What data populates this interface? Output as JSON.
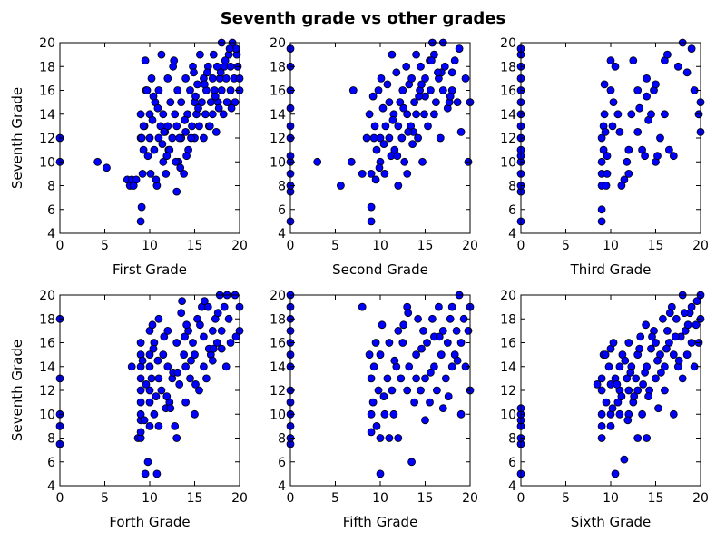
{
  "figure": {
    "title": "Seventh grade vs other grades"
  },
  "chart_data": [
    {
      "type": "scatter",
      "xlabel": "First Grade",
      "ylabel": "Seventh Grade",
      "xlim": [
        0,
        20
      ],
      "ylim": [
        4,
        20
      ],
      "xticks": [
        0,
        5,
        10,
        15,
        20
      ],
      "yticks": [
        4,
        6,
        8,
        10,
        12,
        14,
        16,
        18,
        20
      ],
      "grid": false,
      "marker_color": "#0000ff",
      "x": [
        0,
        0,
        4.2,
        5.2,
        7.5,
        7.8,
        8,
        8.2,
        8.5,
        9,
        9,
        9,
        9.1,
        9.2,
        9.3,
        9.4,
        9.5,
        9.6,
        9.8,
        10,
        10,
        10.1,
        10.2,
        10.3,
        10.5,
        10.6,
        10.8,
        11,
        11,
        11.2,
        11.3,
        11.5,
        11.5,
        11.7,
        11.8,
        12,
        12,
        12.1,
        12.3,
        12.5,
        12.6,
        12.8,
        13,
        13,
        13.1,
        13.2,
        13.5,
        13.5,
        13.8,
        14,
        14,
        14.2,
        14.3,
        14.5,
        14.7,
        14.8,
        15,
        15,
        15.2,
        15.3,
        15.5,
        15.6,
        15.8,
        16,
        16,
        16.2,
        16.3,
        16.5,
        16.6,
        16.8,
        17,
        17,
        17.1,
        17.2,
        17.4,
        17.5,
        17.6,
        17.8,
        18,
        18,
        18.2,
        18.3,
        18.5,
        18.6,
        18.8,
        19,
        19,
        19.2,
        19.4,
        19.5,
        19.7,
        19.8,
        20,
        20,
        9.3,
        9.7,
        10.4,
        10.9,
        11.6,
        12.2,
        12.9,
        13.4,
        13.9,
        14.6,
        15.4,
        16.1,
        16.7,
        17.3,
        17.9,
        18.4,
        19.1,
        19.6,
        9.1,
        10.7,
        11.4,
        12.7,
        13.3,
        14.1,
        15.1,
        16.4,
        17.7,
        18.9,
        11.9,
        14.9
      ],
      "y": [
        10,
        12,
        10,
        9.5,
        8.5,
        8,
        8.5,
        8,
        8.5,
        12,
        14,
        5,
        6.2,
        9,
        11,
        13,
        18.5,
        16,
        10.5,
        12,
        14,
        9,
        17,
        13.5,
        11,
        15,
        8,
        12,
        16,
        13,
        19,
        10,
        14,
        12.5,
        9,
        13,
        17,
        11,
        15,
        12,
        18,
        14,
        7.5,
        13,
        16,
        10,
        12,
        15,
        9,
        12.5,
        17,
        14,
        11,
        16,
        13,
        18,
        12,
        15,
        14,
        16.5,
        13,
        19,
        15,
        12,
        17,
        14,
        16,
        18,
        13,
        15,
        17,
        14,
        19,
        16,
        12.5,
        18,
        15,
        17,
        16,
        20,
        14,
        18,
        17,
        15,
        19,
        16,
        18,
        20,
        17,
        15,
        19,
        18,
        16,
        17,
        13,
        16,
        15.5,
        14.5,
        12.5,
        11,
        10,
        9.5,
        13.5,
        12,
        14.5,
        16.5,
        13,
        15.5,
        17.5,
        18.5,
        14.5,
        19.5,
        12,
        8.5,
        11.5,
        18.5,
        12,
        10.5,
        15.5,
        17.5,
        14.5,
        19.5,
        10.5,
        17.5
      ]
    },
    {
      "type": "scatter",
      "xlabel": "Second Grade",
      "ylabel": "",
      "xlim": [
        0,
        20
      ],
      "ylim": [
        4,
        20
      ],
      "xticks": [
        0,
        5,
        10,
        15,
        20
      ],
      "yticks": [
        4,
        6,
        8,
        10,
        12,
        14,
        16,
        18,
        20
      ],
      "grid": false,
      "marker_color": "#0000ff",
      "x": [
        0,
        0,
        0,
        0,
        0,
        0,
        0,
        0,
        0,
        0,
        0,
        0,
        3,
        5.6,
        6.8,
        7,
        8,
        8.5,
        8.8,
        9,
        9,
        9,
        9.2,
        9.4,
        9.5,
        9.6,
        9.8,
        10,
        10,
        10.1,
        10.3,
        10.5,
        10.6,
        10.8,
        11,
        11,
        11.2,
        11.3,
        11.5,
        11.6,
        11.8,
        12,
        12,
        12.2,
        12.4,
        12.5,
        12.7,
        12.9,
        13,
        13,
        13.2,
        13.4,
        13.5,
        13.6,
        13.8,
        14,
        14,
        14.2,
        14.4,
        14.5,
        14.7,
        14.9,
        15,
        15,
        15.3,
        15.5,
        15.6,
        15.8,
        16,
        16,
        16.2,
        16.5,
        16.7,
        17,
        17,
        17.2,
        17.5,
        17.7,
        18,
        18,
        18.3,
        18.6,
        19,
        19.5,
        19.8,
        20,
        9.3,
        10.4,
        11.4,
        12.6,
        13.7,
        14.6,
        15.7,
        16.8,
        17.8,
        18.8,
        9.9,
        11.9,
        13.1,
        14.3,
        16.4
      ],
      "y": [
        5,
        7.5,
        8,
        9,
        10,
        10.5,
        12,
        13,
        14.5,
        16,
        18,
        19.5,
        10,
        8,
        10,
        16,
        9,
        12,
        14,
        9,
        6.2,
        5,
        15.5,
        13,
        8.5,
        11,
        16,
        12,
        10,
        17,
        14.5,
        9,
        13,
        16.5,
        12,
        15,
        10.5,
        19,
        14,
        11,
        17.5,
        13,
        8,
        15,
        12,
        16,
        10,
        18,
        14,
        9,
        16.5,
        13,
        17,
        11.5,
        15,
        19,
        14,
        12,
        16,
        18,
        10,
        14,
        17,
        15.5,
        13,
        18.5,
        16,
        20,
        14,
        19,
        15,
        17,
        12,
        20,
        16,
        18,
        14.5,
        15,
        17.5,
        16,
        18.5,
        15,
        12.5,
        17,
        10,
        15,
        12,
        11.5,
        13.5,
        14.5,
        12.5,
        16.5,
        18.5,
        17.5,
        15.5,
        19.5,
        9.5,
        10.5,
        12.5,
        15.5,
        17.5
      ]
    },
    {
      "type": "scatter",
      "xlabel": "Third Grade",
      "ylabel": "",
      "xlim": [
        0,
        20
      ],
      "ylim": [
        4,
        20
      ],
      "xticks": [
        0,
        5,
        10,
        15,
        20
      ],
      "yticks": [
        4,
        6,
        8,
        10,
        12,
        14,
        16,
        18,
        20
      ],
      "grid": false,
      "marker_color": "#0000ff",
      "x": [
        0,
        0,
        0,
        0,
        0,
        0,
        0,
        0,
        0,
        0,
        0,
        0,
        0,
        0,
        0,
        0,
        9,
        9,
        9,
        9,
        9,
        9,
        9.2,
        9.2,
        9.3,
        9.3,
        9.4,
        9.5,
        9.6,
        9.6,
        10,
        10,
        10.2,
        10.3,
        10.5,
        10.8,
        11,
        11.2,
        11.5,
        11.8,
        12,
        12,
        12.3,
        12.5,
        13,
        13,
        13.2,
        13.5,
        13.8,
        14,
        14,
        14.2,
        14.5,
        14.8,
        15,
        15,
        15.2,
        15.5,
        16,
        16,
        16.3,
        16.5,
        17,
        17.5,
        18,
        18.5,
        19,
        19.3,
        19.8,
        20,
        20
      ],
      "y": [
        5,
        7.5,
        8,
        9,
        10,
        10.5,
        11,
        12,
        13,
        14,
        15,
        16,
        17,
        18,
        19,
        19.5,
        5,
        6,
        8,
        9,
        10,
        12,
        11,
        13,
        14,
        16.5,
        12.5,
        8,
        9,
        10.5,
        18.5,
        16,
        13,
        15,
        18,
        14,
        12.5,
        8,
        8.5,
        10,
        9,
        11,
        14,
        18.5,
        12.5,
        16,
        14.5,
        11,
        10.5,
        15.5,
        17,
        13.5,
        14,
        16,
        10,
        16.5,
        10.5,
        12,
        18.5,
        14,
        19,
        11,
        10.5,
        18,
        20,
        17.5,
        19.5,
        16,
        14,
        12.5,
        15
      ]
    },
    {
      "type": "scatter",
      "xlabel": "Forth Grade",
      "ylabel": "Seventh Grade",
      "xlim": [
        0,
        20
      ],
      "ylim": [
        4,
        20
      ],
      "xticks": [
        0,
        5,
        10,
        15,
        20
      ],
      "yticks": [
        4,
        6,
        8,
        10,
        12,
        14,
        16,
        18,
        20
      ],
      "grid": false,
      "marker_color": "#0000ff",
      "x": [
        0,
        0,
        0,
        0,
        0,
        8,
        8.7,
        9,
        9,
        9,
        9,
        9,
        9,
        9,
        9,
        9,
        9,
        9.5,
        9.8,
        10,
        10,
        10,
        10,
        10,
        10,
        10.2,
        10.5,
        10.5,
        10.8,
        11,
        11,
        11,
        11.3,
        11.5,
        11.8,
        12,
        12,
        12.2,
        12.5,
        12.8,
        13,
        13,
        13.3,
        13.5,
        13.8,
        14,
        14,
        14.3,
        14.5,
        14.8,
        15,
        15,
        15.3,
        15.5,
        15.8,
        16,
        16,
        16.3,
        16.5,
        16.8,
        17,
        17,
        17.3,
        17.5,
        17.8,
        18,
        18,
        18.3,
        18.5,
        18.8,
        19,
        19.5,
        20,
        20,
        9.2,
        9.6,
        10.4,
        10.7,
        11.6,
        12.6,
        13.6,
        14.6,
        15.6,
        16.6,
        17.6,
        18.6,
        19.6,
        10.3,
        10.9,
        12.3,
        13.1,
        14.1,
        15.1,
        16.1,
        17.1,
        9.4,
        11.9,
        13.9
      ],
      "y": [
        7.5,
        9,
        10,
        13,
        18,
        14,
        8,
        8,
        8.5,
        9.5,
        10,
        11,
        12,
        13,
        14,
        15,
        16,
        5,
        6,
        9,
        11,
        12,
        14,
        15,
        17,
        13,
        10,
        16,
        5,
        9,
        13,
        18,
        12,
        15,
        10.5,
        14,
        17,
        11,
        13,
        9,
        8,
        16,
        12.5,
        18.5,
        15,
        11,
        14,
        17,
        13,
        16,
        10,
        15,
        18,
        12,
        19,
        14,
        16.5,
        13,
        19,
        15,
        17,
        14.5,
        18,
        16,
        20,
        15.5,
        17,
        19,
        14,
        18,
        16,
        20,
        17,
        19,
        14.5,
        12.5,
        15.5,
        11.5,
        16.5,
        13.5,
        19.5,
        14.5,
        17.5,
        15.5,
        18.5,
        20,
        16.5,
        17.5,
        14.5,
        10.5,
        13.5,
        17.5,
        12.5,
        19.5,
        15.5,
        9.5,
        11.5,
        16.5
      ]
    },
    {
      "type": "scatter",
      "xlabel": "Fifth Grade",
      "ylabel": "",
      "xlim": [
        0,
        20
      ],
      "ylim": [
        4,
        20
      ],
      "xticks": [
        0,
        5,
        10,
        15,
        20
      ],
      "yticks": [
        4,
        6,
        8,
        10,
        12,
        14,
        16,
        18,
        20
      ],
      "grid": false,
      "marker_color": "#0000ff",
      "x": [
        0,
        0,
        0,
        0,
        0,
        0,
        0,
        0,
        0,
        0,
        0,
        0,
        0,
        8,
        8.8,
        9,
        9,
        9,
        9.2,
        9.3,
        9.5,
        9.6,
        9.8,
        10,
        10,
        10,
        10.2,
        10.5,
        10.8,
        11,
        11,
        11.3,
        11.5,
        11.8,
        12,
        12,
        12.3,
        12.5,
        13,
        13,
        13.2,
        13.5,
        13.8,
        14,
        14,
        14.2,
        14.5,
        14.8,
        15,
        15,
        15.2,
        15.5,
        15.8,
        16,
        16,
        16.3,
        16.5,
        16.8,
        17,
        17,
        17.3,
        17.5,
        17.8,
        18,
        18,
        18.3,
        18.5,
        18.8,
        19,
        19,
        19.3,
        19.5,
        19.8,
        20,
        20,
        13.1,
        14.6,
        15.6,
        16.6,
        17.6,
        18.6,
        10.4,
        11.6,
        12.6
      ],
      "y": [
        7.5,
        8,
        9,
        10,
        11,
        12,
        14,
        15,
        16,
        17,
        18,
        19,
        20,
        19,
        15,
        8.5,
        10,
        13,
        11,
        14,
        16,
        9,
        12,
        5,
        8,
        15,
        17.5,
        10,
        13,
        16,
        8,
        12,
        10,
        14,
        8,
        17,
        13,
        16,
        12,
        19,
        14,
        6,
        11,
        13,
        15,
        18,
        12,
        17,
        9.5,
        13,
        16,
        11,
        18,
        14,
        16.5,
        12,
        19,
        15,
        10.5,
        17,
        13,
        16,
        18,
        14,
        19,
        15,
        17,
        20,
        10,
        16,
        18,
        14,
        17,
        12,
        19,
        18.5,
        15.5,
        13.5,
        16.5,
        11.5,
        14.5,
        11.5,
        14.5,
        17.5
      ]
    },
    {
      "type": "scatter",
      "xlabel": "Sixth Grade",
      "ylabel": "",
      "xlim": [
        0,
        20
      ],
      "ylim": [
        4,
        20
      ],
      "xticks": [
        0,
        5,
        10,
        15,
        20
      ],
      "yticks": [
        4,
        6,
        8,
        10,
        12,
        14,
        16,
        18,
        20
      ],
      "grid": false,
      "marker_color": "#0000ff",
      "x": [
        0,
        0,
        0,
        0,
        0,
        0,
        0,
        8.5,
        9,
        9,
        9,
        9,
        9,
        9.2,
        9.5,
        9.8,
        10,
        10,
        10,
        10,
        10.3,
        10.5,
        10.5,
        10.8,
        11,
        11,
        11,
        11.3,
        11.5,
        11.8,
        12,
        12,
        12,
        12.3,
        12.5,
        12.8,
        13,
        13,
        13,
        13.3,
        13.5,
        13.8,
        14,
        14,
        14.3,
        14.5,
        14.8,
        15,
        15,
        15.3,
        15.5,
        15.8,
        16,
        16,
        16.3,
        16.5,
        16.8,
        17,
        17,
        17.3,
        17.5,
        17.8,
        18,
        18,
        18.3,
        18.5,
        18.8,
        19,
        19,
        19.3,
        19.5,
        19.8,
        20,
        20,
        9.4,
        10.7,
        11.6,
        12.6,
        13.6,
        14.6,
        15.6,
        16.6,
        17.6,
        18.6,
        19.6,
        10.2,
        11.2,
        12.2,
        13.2,
        14.2,
        15.2,
        16.2,
        17.2,
        18.2,
        11.9,
        13.9
      ],
      "y": [
        5,
        7.5,
        8,
        9,
        9.5,
        10,
        10.5,
        12.5,
        8,
        9,
        10,
        12,
        13,
        15,
        11,
        14,
        9,
        10,
        12.5,
        15.5,
        16,
        5,
        13,
        11,
        10,
        12,
        14,
        15,
        6.2,
        13,
        10,
        12,
        16,
        14,
        11,
        13,
        8,
        12,
        15,
        16.5,
        10,
        13.5,
        8,
        14,
        12,
        15.5,
        17,
        13,
        16,
        10.5,
        15,
        18,
        12,
        14,
        17,
        16,
        19,
        10,
        15,
        18,
        14,
        16.5,
        13,
        20,
        17,
        15,
        18.5,
        16,
        19,
        14,
        17.5,
        16,
        18,
        20,
        15,
        12.5,
        14.5,
        11.5,
        12.5,
        16.5,
        13.5,
        18.5,
        14.5,
        17.5,
        19.5,
        10.5,
        11.5,
        13.5,
        15.5,
        11.5,
        14.5,
        15.5,
        16.5,
        18.5,
        9.5,
        17.5
      ]
    }
  ]
}
